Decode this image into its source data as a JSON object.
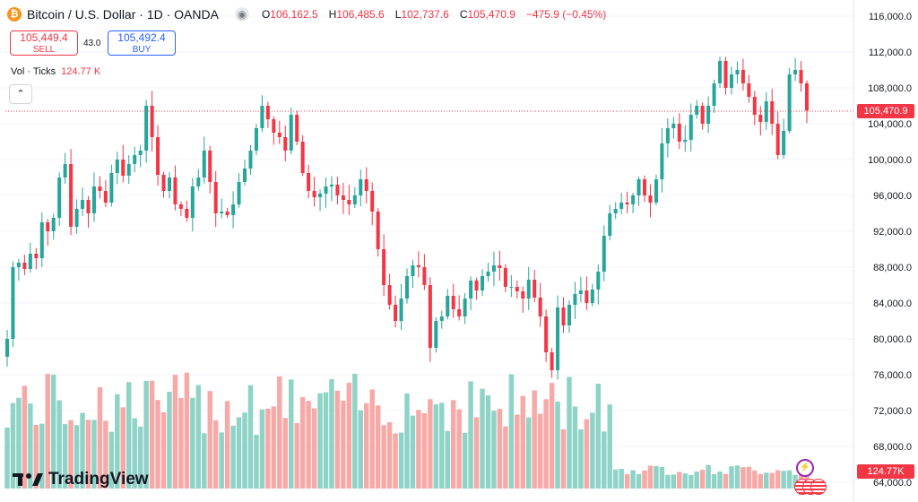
{
  "header": {
    "symbol_icon": "bitcoin-icon",
    "title": "Bitcoin / U.S. Dollar · 1D · OANDA",
    "ohlc": [
      {
        "label": "O",
        "value": "106,162.5"
      },
      {
        "label": "H",
        "value": "106,485.6"
      },
      {
        "label": "L",
        "value": "102,737.6"
      },
      {
        "label": "C",
        "value": "105,470.9"
      }
    ],
    "change": "−475.9 (−0.45%)"
  },
  "trade": {
    "sell_price": "105,449.4",
    "sell_label": "SELL",
    "spread": "43.0",
    "buy_price": "105,492.4",
    "buy_label": "BUY"
  },
  "volume_legend": {
    "label": "Vol · Ticks",
    "value": "124.77 K"
  },
  "collapse_icon": "chevron-up-icon",
  "price_tag": "105,470.9",
  "volume_tag": "124.77K",
  "branding": "TradingView",
  "colors": {
    "up": "#26a69a",
    "down": "#f23645",
    "vol_up": "#8fd3c7",
    "vol_down": "#f7a9a7"
  },
  "chart_data": {
    "type": "candlestick",
    "price_axis_ticks": [
      "116,000.0",
      "112,000.0",
      "108,000.0",
      "104,000.0",
      "100,000.0",
      "96,000.0",
      "92,000.0",
      "88,000.0",
      "84,000.0",
      "80,000.0",
      "76,000.0",
      "72,000.0",
      "68,000.0",
      "64,000.0"
    ],
    "ylim": [
      63000,
      117000
    ],
    "last_price": 105470.9,
    "closes": [
      80000,
      88000,
      88500,
      87800,
      89500,
      89000,
      93000,
      92000,
      93500,
      98000,
      99500,
      92500,
      94500,
      95500,
      94000,
      97000,
      96500,
      95200,
      98500,
      100000,
      98200,
      99500,
      100500,
      101000,
      106000,
      102500,
      98300,
      96500,
      98000,
      95000,
      94500,
      93500,
      97000,
      98000,
      101000,
      97500,
      94000,
      94200,
      93800,
      95000,
      97500,
      99000,
      101000,
      103500,
      106000,
      104500,
      103000,
      102500,
      101000,
      105000,
      102000,
      98500,
      96500,
      95800,
      96200,
      97000,
      97200,
      96000,
      95500,
      95000,
      96000,
      97800,
      96500,
      94200,
      90000,
      86000,
      83800,
      82000,
      84500,
      87000,
      88200,
      88000,
      86000,
      79000,
      82000,
      82500,
      84800,
      83300,
      82500,
      84500,
      86500,
      85400,
      87000,
      87500,
      88200,
      87900,
      85800,
      85800,
      85300,
      84500,
      86600,
      84600,
      82500,
      78500,
      76500,
      83500,
      81500,
      83800,
      85000,
      85400,
      84000,
      85500,
      87500,
      91500,
      94000,
      94500,
      95200,
      95000,
      96000,
      97800,
      96000,
      95200,
      97800,
      101800,
      103500,
      104000,
      102000,
      102200,
      105000,
      106000,
      104000,
      106000,
      108500,
      111000,
      108000,
      109500,
      110000,
      108500,
      107000,
      105000,
      104200,
      106500,
      104000,
      100500,
      103200,
      109500,
      110000,
      108500,
      105470.9
    ],
    "volume_axis_label": "Vol · Ticks",
    "last_volume": "124.77K"
  }
}
